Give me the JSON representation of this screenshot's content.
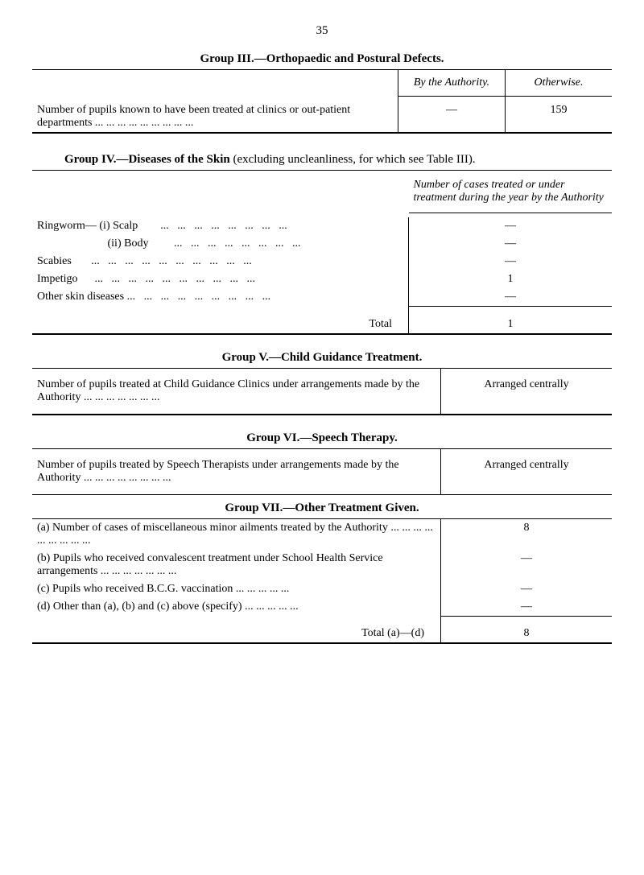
{
  "page_number": "35",
  "group3": {
    "title": "Group III.—Orthopaedic and Postural Defects.",
    "header_col1": "By the Authority.",
    "header_col2": "Otherwise.",
    "row1_desc": "Number of pupils known to have been treated at clinics or out-patient departments ...   ...   ...   ...   ...   ...   ...   ...   ...",
    "row1_val1": "—",
    "row1_val2": "159"
  },
  "group4": {
    "title_prefix": "Group IV.—Diseases of the Skin",
    "title_suffix": " (excluding uncleanliness, for which see Table III).",
    "header": "Number of cases treated or under treatment during the year by the Authority",
    "rows": [
      {
        "desc": "Ringworm— (i) Scalp        ...   ...   ...   ...   ...   ...   ...   ...",
        "val": "—"
      },
      {
        "desc": "                         (ii) Body         ...   ...   ...   ...   ...   ...   ...   ...",
        "val": "—"
      },
      {
        "desc": "Scabies       ...   ...   ...   ...   ...   ...   ...   ...   ...   ...",
        "val": "—"
      },
      {
        "desc": "Impetigo      ...   ...   ...   ...   ...   ...   ...   ...   ...   ...",
        "val": "1"
      },
      {
        "desc": "Other skin diseases ...   ...   ...   ...   ...   ...   ...   ...   ...",
        "val": "—"
      }
    ],
    "total_label": "Total",
    "total_val": "1"
  },
  "group5": {
    "title": "Group V.—Child Guidance Treatment.",
    "desc": "Number of pupils treated at Child Guidance Clinics under arrangements made by the Authority     ...   ...   ...   ...   ...   ...   ...",
    "val": "Arranged centrally"
  },
  "group6": {
    "title": "Group VI.—Speech Therapy.",
    "desc": "Number of pupils treated by Speech Therapists under arrangements made by the Authority     ...   ...   ...   ...   ...   ...   ...   ...",
    "val": "Arranged centrally"
  },
  "group7": {
    "title": "Group VII.—Other Treatment Given.",
    "rows": [
      {
        "desc": "(a) Number of cases of miscellaneous minor ailments treated by the Authority   ...   ...   ...   ...   ...   ...   ...   ...   ...",
        "val": "8"
      },
      {
        "desc": "(b) Pupils who received convalescent treatment under School Health Service arrangements     ...   ...   ...   ...   ...   ...   ...",
        "val": "—"
      },
      {
        "desc": "(c) Pupils who received B.C.G. vaccination   ...   ...   ...   ...   ...",
        "val": "—"
      },
      {
        "desc": "(d) Other than (a), (b) and (c) above (specify)   ...   ...   ...   ...   ...",
        "val": "—"
      }
    ],
    "total_label": "Total (a)—(d)",
    "total_val": "8"
  }
}
